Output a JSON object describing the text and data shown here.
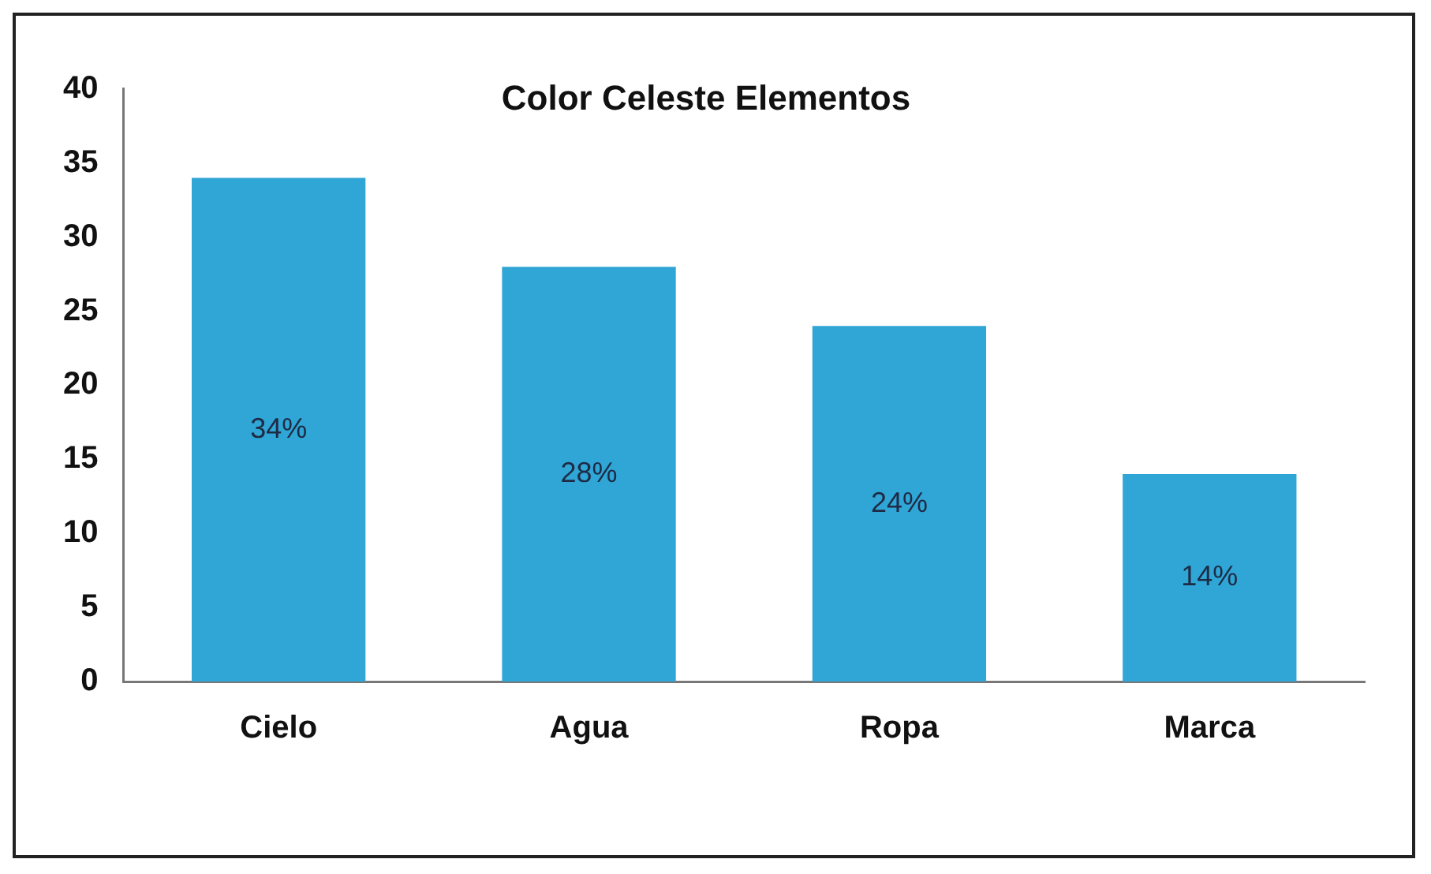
{
  "chart_data": {
    "type": "bar",
    "title": "Color Celeste Elementos",
    "categories": [
      "Cielo",
      "Agua",
      "Ropa",
      "Marca"
    ],
    "values": [
      34,
      28,
      24,
      14
    ],
    "value_labels": [
      "34%",
      "28%",
      "24%",
      "14%"
    ],
    "color": "#2fa6d6",
    "ylim": [
      0,
      40
    ],
    "yticks": [
      0,
      5,
      10,
      15,
      20,
      25,
      30,
      35,
      40
    ],
    "grid": false,
    "legend": false
  }
}
